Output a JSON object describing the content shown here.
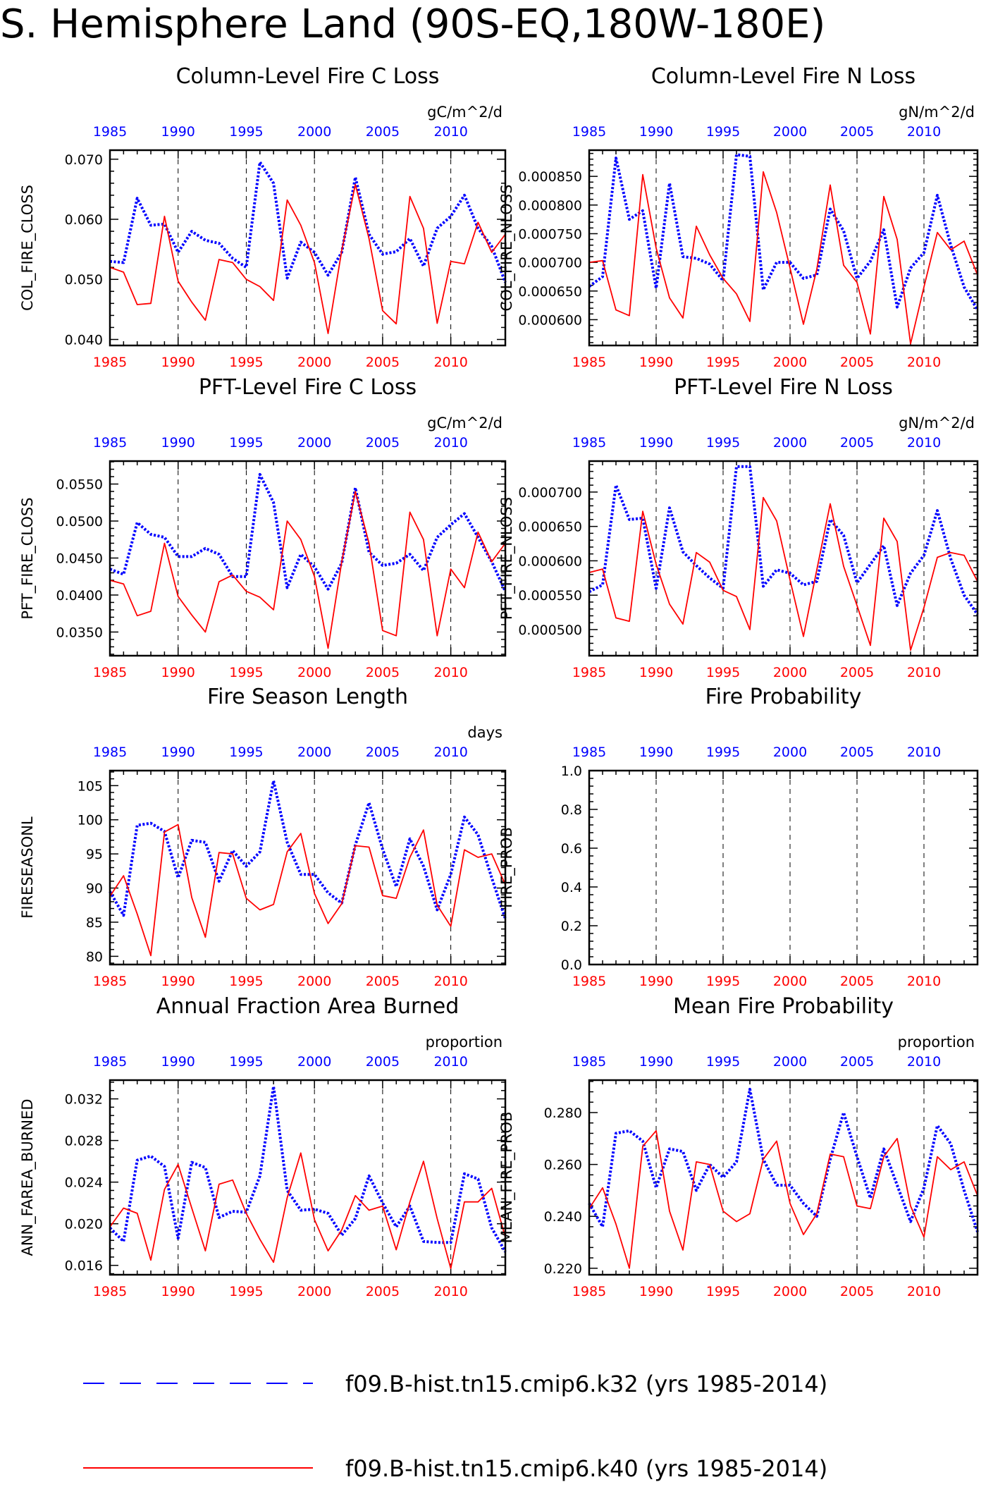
{
  "page_title": "S. Hemisphere Land (90S-EQ,180W-180E)",
  "colors": {
    "case1": "#0000ff",
    "case2": "#ff0000",
    "axis": "#000000",
    "gridline": "#000000"
  },
  "legend": {
    "items": [
      {
        "label": "f09.B-hist.tn15.cmip6.k32 (yrs 1985-2014)",
        "color": "#0000ff",
        "style": "dashed"
      },
      {
        "label": "f09.B-hist.tn15.cmip6.k40 (yrs 1985-2014)",
        "color": "#ff0000",
        "style": "solid"
      }
    ]
  },
  "chart_data": [
    {
      "type": "line",
      "title": "Column-Level Fire C Loss",
      "units": "gC/m^2/d",
      "ylabel": "COL_FIRE_CLOSS",
      "xlim": [
        1985,
        2014
      ],
      "ylim": [
        0.039,
        0.0715
      ],
      "yticks": [
        0.04,
        0.05,
        0.06,
        0.07
      ],
      "ytick_labels": [
        "0.040",
        "0.050",
        "0.060",
        "0.070"
      ],
      "xticks": [
        1985,
        1990,
        1995,
        2000,
        2005,
        2010
      ],
      "vgrid": [
        1990,
        1995,
        2000,
        2005,
        2010
      ],
      "x": [
        1985,
        1986,
        1987,
        1988,
        1989,
        1990,
        1991,
        1992,
        1993,
        1994,
        1995,
        1996,
        1997,
        1998,
        1999,
        2000,
        2001,
        2002,
        2003,
        2004,
        2005,
        2006,
        2007,
        2008,
        2009,
        2010,
        2011,
        2012,
        2013,
        2014
      ],
      "series": [
        {
          "values": [
            0.053,
            0.0528,
            0.0635,
            0.059,
            0.0592,
            0.0545,
            0.058,
            0.0565,
            0.056,
            0.0535,
            0.052,
            0.0695,
            0.066,
            0.0502,
            0.0562,
            0.0545,
            0.0507,
            0.0545,
            0.067,
            0.0575,
            0.0542,
            0.0546,
            0.0568,
            0.0522,
            0.0585,
            0.0605,
            0.064,
            0.0585,
            0.0555,
            0.0495
          ],
          "color": "#0000ff",
          "style": "dotted"
        },
        {
          "values": [
            0.052,
            0.0512,
            0.0458,
            0.046,
            0.0605,
            0.0497,
            0.0462,
            0.0432,
            0.0533,
            0.0528,
            0.05,
            0.0488,
            0.0465,
            0.0632,
            0.059,
            0.0528,
            0.041,
            0.0548,
            0.0658,
            0.0568,
            0.0448,
            0.0426,
            0.0638,
            0.0585,
            0.0427,
            0.053,
            0.0526,
            0.0595,
            0.0545,
            0.0575
          ],
          "color": "#ff0000",
          "style": "solid"
        }
      ]
    },
    {
      "type": "line",
      "title": "Column-Level Fire N Loss",
      "units": "gN/m^2/d",
      "ylabel": "COL_FIRE_NLOSS",
      "xlim": [
        1985,
        2014
      ],
      "ylim": [
        0.000555,
        0.0008957
      ],
      "yticks": [
        0.0006,
        0.00065,
        0.0007,
        0.00075,
        0.0008,
        0.00085
      ],
      "ytick_labels": [
        "0.000600",
        "0.000650",
        "0.000700",
        "0.000750",
        "0.000800",
        "0.000850"
      ],
      "xticks": [
        1985,
        1990,
        1995,
        2000,
        2005,
        2010
      ],
      "vgrid": [
        1990,
        1995,
        2000,
        2005,
        2010
      ],
      "x": [
        1985,
        1986,
        1987,
        1988,
        1989,
        1990,
        1991,
        1992,
        1993,
        1994,
        1995,
        1996,
        1997,
        1998,
        1999,
        2000,
        2001,
        2002,
        2003,
        2004,
        2005,
        2006,
        2007,
        2008,
        2009,
        2010,
        2011,
        2012,
        2013,
        2014
      ],
      "series": [
        {
          "values": [
            0.000658,
            0.000675,
            0.000882,
            0.000775,
            0.00079,
            0.000655,
            0.000838,
            0.00071,
            0.000707,
            0.000697,
            0.000668,
            0.000888,
            0.000885,
            0.000652,
            0.0007,
            0.0007,
            0.000672,
            0.000678,
            0.000793,
            0.000755,
            0.000672,
            0.000702,
            0.000757,
            0.000622,
            0.00069,
            0.000717,
            0.000817,
            0.00073,
            0.000657,
            0.000617
          ],
          "color": "#0000ff",
          "style": "dotted"
        },
        {
          "values": [
            0.0007,
            0.000703,
            0.000617,
            0.000607,
            0.000853,
            0.000725,
            0.000638,
            0.000603,
            0.000763,
            0.000713,
            0.000672,
            0.000645,
            0.000597,
            0.000858,
            0.000787,
            0.00069,
            0.000592,
            0.000688,
            0.000835,
            0.000695,
            0.000665,
            0.000575,
            0.000815,
            0.00074,
            0.000558,
            0.000657,
            0.000752,
            0.000722,
            0.000737,
            0.000678
          ],
          "color": "#ff0000",
          "style": "solid"
        }
      ]
    },
    {
      "type": "line",
      "title": "PFT-Level Fire C Loss",
      "units": "gC/m^2/d",
      "ylabel": "PFT_FIRE_CLOSS",
      "xlim": [
        1985,
        2014
      ],
      "ylim": [
        0.0318,
        0.0581
      ],
      "yticks": [
        0.035,
        0.04,
        0.045,
        0.05,
        0.055
      ],
      "ytick_labels": [
        "0.0350",
        "0.0400",
        "0.0450",
        "0.0500",
        "0.0550"
      ],
      "xticks": [
        1985,
        1990,
        1995,
        2000,
        2005,
        2010
      ],
      "vgrid": [
        1990,
        1995,
        2000,
        2005,
        2010
      ],
      "x": [
        1985,
        1986,
        1987,
        1988,
        1989,
        1990,
        1991,
        1992,
        1993,
        1994,
        1995,
        1996,
        1997,
        1998,
        1999,
        2000,
        2001,
        2002,
        2003,
        2004,
        2005,
        2006,
        2007,
        2008,
        2009,
        2010,
        2011,
        2012,
        2013,
        2014
      ],
      "series": [
        {
          "values": [
            0.0435,
            0.0428,
            0.0498,
            0.0482,
            0.0478,
            0.0452,
            0.0452,
            0.0463,
            0.0455,
            0.0425,
            0.0425,
            0.0563,
            0.0525,
            0.041,
            0.0455,
            0.0438,
            0.0408,
            0.0443,
            0.0545,
            0.0458,
            0.044,
            0.0443,
            0.0455,
            0.0433,
            0.0478,
            0.0495,
            0.051,
            0.0478,
            0.0445,
            0.0405
          ],
          "color": "#0000ff",
          "style": "dotted"
        },
        {
          "values": [
            0.042,
            0.0415,
            0.0372,
            0.0378,
            0.047,
            0.0398,
            0.0373,
            0.035,
            0.0418,
            0.0427,
            0.0405,
            0.0397,
            0.038,
            0.05,
            0.0475,
            0.0425,
            0.0328,
            0.0445,
            0.054,
            0.047,
            0.0352,
            0.0345,
            0.0512,
            0.0475,
            0.0345,
            0.0435,
            0.041,
            0.0485,
            0.0445,
            0.047
          ],
          "color": "#ff0000",
          "style": "solid"
        }
      ]
    },
    {
      "type": "line",
      "title": "PFT-Level Fire N Loss",
      "units": "gN/m^2/d",
      "ylabel": "PFT_FIRE_NLOSS",
      "xlim": [
        1985,
        2014
      ],
      "ylim": [
        0.000462,
        0.000745
      ],
      "yticks": [
        0.0005,
        0.00055,
        0.0006,
        0.00065,
        0.0007
      ],
      "ytick_labels": [
        "0.000500",
        "0.000550",
        "0.000600",
        "0.000650",
        "0.000700"
      ],
      "xticks": [
        1985,
        1990,
        1995,
        2000,
        2005,
        2010
      ],
      "vgrid": [
        1990,
        1995,
        2000,
        2005,
        2010
      ],
      "x": [
        1985,
        1986,
        1987,
        1988,
        1989,
        1990,
        1991,
        1992,
        1993,
        1994,
        1995,
        1996,
        1997,
        1998,
        1999,
        2000,
        2001,
        2002,
        2003,
        2004,
        2005,
        2006,
        2007,
        2008,
        2009,
        2010,
        2011,
        2012,
        2013,
        2014
      ],
      "series": [
        {
          "values": [
            0.000555,
            0.000565,
            0.00071,
            0.00066,
            0.000662,
            0.00056,
            0.000677,
            0.000613,
            0.000593,
            0.000575,
            0.00056,
            0.000737,
            0.000737,
            0.000563,
            0.000587,
            0.000582,
            0.000565,
            0.00057,
            0.00066,
            0.000637,
            0.000568,
            0.000595,
            0.000622,
            0.000535,
            0.000582,
            0.000608,
            0.000673,
            0.000603,
            0.00055,
            0.000522
          ],
          "color": "#0000ff",
          "style": "dotted"
        },
        {
          "values": [
            0.000583,
            0.000588,
            0.000517,
            0.000512,
            0.000672,
            0.000595,
            0.000537,
            0.000508,
            0.000612,
            0.000598,
            0.000557,
            0.000548,
            0.0005,
            0.000692,
            0.000658,
            0.000572,
            0.00049,
            0.000587,
            0.000683,
            0.000592,
            0.000535,
            0.000477,
            0.000662,
            0.000628,
            0.00047,
            0.000532,
            0.000605,
            0.000612,
            0.000608,
            0.00057
          ],
          "color": "#ff0000",
          "style": "solid"
        }
      ]
    },
    {
      "type": "line",
      "title": "Fire Season Length",
      "units": "days",
      "ylabel": "FIRESEASONL",
      "xlim": [
        1985,
        2014
      ],
      "ylim": [
        78.8,
        107.2
      ],
      "yticks": [
        80,
        85,
        90,
        95,
        100,
        105
      ],
      "ytick_labels": [
        "80",
        "85",
        "90",
        "95",
        "100",
        "105"
      ],
      "xticks": [
        1985,
        1990,
        1995,
        2000,
        2005,
        2010
      ],
      "vgrid": [
        1990,
        1995,
        2000,
        2005,
        2010
      ],
      "x": [
        1985,
        1986,
        1987,
        1988,
        1989,
        1990,
        1991,
        1992,
        1993,
        1994,
        1995,
        1996,
        1997,
        1998,
        1999,
        2000,
        2001,
        2002,
        2003,
        2004,
        2005,
        2006,
        2007,
        2008,
        2009,
        2010,
        2011,
        2012,
        2013,
        2014
      ],
      "series": [
        {
          "values": [
            89.5,
            86,
            99.2,
            99.5,
            98.3,
            91.5,
            97,
            96.7,
            91,
            95.5,
            93.2,
            95.3,
            105.7,
            96.7,
            92,
            92,
            89.3,
            87.8,
            96.3,
            102.5,
            95.7,
            90.2,
            97.2,
            93.2,
            86.8,
            92,
            100.4,
            97.8,
            91.5,
            85.5
          ],
          "color": "#0000ff",
          "style": "dotted"
        },
        {
          "values": [
            88.8,
            91.8,
            86.2,
            80.1,
            98.2,
            99.3,
            88.6,
            82.8,
            95.2,
            95,
            88.5,
            86.8,
            87.6,
            95.3,
            98,
            89.2,
            84.8,
            87.7,
            96.2,
            96,
            88.9,
            88.5,
            94.5,
            98.5,
            87.5,
            84.4,
            95.6,
            94.5,
            95,
            90.5
          ],
          "color": "#ff0000",
          "style": "solid"
        }
      ]
    },
    {
      "type": "line",
      "title": "Fire Probability",
      "units": "",
      "ylabel": "FIRE_PROB",
      "xlim": [
        1985,
        2014
      ],
      "ylim": [
        0,
        1
      ],
      "yticks": [
        0,
        0.2,
        0.4,
        0.6,
        0.8,
        1.0
      ],
      "ytick_labels": [
        "0.0",
        "0.2",
        "0.4",
        "0.6",
        "0.8",
        "1.0"
      ],
      "xticks": [
        1985,
        1990,
        1995,
        2000,
        2005,
        2010
      ],
      "vgrid": [
        1990,
        1995,
        2000,
        2005,
        2010
      ],
      "x": [],
      "series": []
    },
    {
      "type": "line",
      "title": "Annual Fraction Area Burned",
      "units": "proportion",
      "ylabel": "ANN_FAREA_BURNED",
      "xlim": [
        1985,
        2014
      ],
      "ylim": [
        0.0151,
        0.0338
      ],
      "yticks": [
        0.016,
        0.02,
        0.024,
        0.028,
        0.032
      ],
      "ytick_labels": [
        "0.016",
        "0.020",
        "0.024",
        "0.028",
        "0.032"
      ],
      "xticks": [
        1985,
        1990,
        1995,
        2000,
        2005,
        2010
      ],
      "vgrid": [
        1990,
        1995,
        2000,
        2005,
        2010
      ],
      "x": [
        1985,
        1986,
        1987,
        1988,
        1989,
        1990,
        1991,
        1992,
        1993,
        1994,
        1995,
        1996,
        1997,
        1998,
        1999,
        2000,
        2001,
        2002,
        2003,
        2004,
        2005,
        2006,
        2007,
        2008,
        2009,
        2010,
        2011,
        2012,
        2013,
        2014
      ],
      "series": [
        {
          "values": [
            0.0196,
            0.0183,
            0.0261,
            0.0265,
            0.0255,
            0.0186,
            0.0259,
            0.0254,
            0.0206,
            0.0212,
            0.0211,
            0.0246,
            0.0332,
            0.0232,
            0.0213,
            0.0214,
            0.021,
            0.0189,
            0.0205,
            0.0246,
            0.022,
            0.0197,
            0.0217,
            0.0183,
            0.0182,
            0.0182,
            0.0248,
            0.0243,
            0.0196,
            0.0173
          ],
          "color": "#0000ff",
          "style": "dotted"
        },
        {
          "values": [
            0.0197,
            0.0215,
            0.021,
            0.0165,
            0.0233,
            0.0257,
            0.0215,
            0.0174,
            0.0238,
            0.0242,
            0.021,
            0.0185,
            0.0163,
            0.0225,
            0.0268,
            0.0204,
            0.0174,
            0.0194,
            0.0227,
            0.0213,
            0.0217,
            0.0175,
            0.0221,
            0.026,
            0.0205,
            0.0157,
            0.0221,
            0.0221,
            0.0234,
            0.0187
          ],
          "color": "#ff0000",
          "style": "solid"
        }
      ]
    },
    {
      "type": "line",
      "title": "Mean Fire Probability",
      "units": "proportion",
      "ylabel": "MEAN_FIRE_PROB",
      "xlim": [
        1985,
        2014
      ],
      "ylim": [
        0.2175,
        0.2925
      ],
      "yticks": [
        0.22,
        0.24,
        0.26,
        0.28
      ],
      "ytick_labels": [
        "0.220",
        "0.240",
        "0.260",
        "0.280"
      ],
      "xticks": [
        1985,
        1990,
        1995,
        2000,
        2005,
        2010
      ],
      "vgrid": [
        1990,
        1995,
        2000,
        2005,
        2010
      ],
      "x": [
        1985,
        1986,
        1987,
        1988,
        1989,
        1990,
        1991,
        1992,
        1993,
        1994,
        1995,
        1996,
        1997,
        1998,
        1999,
        2000,
        2001,
        2002,
        2003,
        2004,
        2005,
        2006,
        2007,
        2008,
        2009,
        2010,
        2011,
        2012,
        2013,
        2014
      ],
      "series": [
        {
          "values": [
            0.245,
            0.236,
            0.272,
            0.273,
            0.269,
            0.251,
            0.266,
            0.265,
            0.25,
            0.26,
            0.255,
            0.261,
            0.289,
            0.262,
            0.252,
            0.252,
            0.245,
            0.24,
            0.262,
            0.28,
            0.263,
            0.247,
            0.266,
            0.252,
            0.238,
            0.251,
            0.275,
            0.268,
            0.25,
            0.234
          ],
          "color": "#0000ff",
          "style": "dotted"
        },
        {
          "values": [
            0.243,
            0.251,
            0.237,
            0.22,
            0.267,
            0.273,
            0.242,
            0.227,
            0.261,
            0.26,
            0.242,
            0.238,
            0.241,
            0.262,
            0.269,
            0.245,
            0.233,
            0.241,
            0.264,
            0.263,
            0.244,
            0.243,
            0.263,
            0.27,
            0.244,
            0.232,
            0.263,
            0.258,
            0.261,
            0.248
          ],
          "color": "#ff0000",
          "style": "solid"
        }
      ]
    }
  ]
}
